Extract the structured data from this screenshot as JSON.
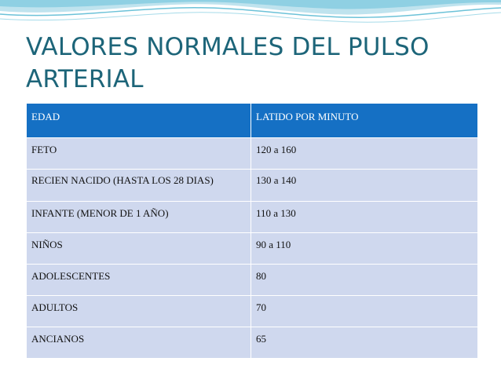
{
  "slide": {
    "title": "VALORES NORMALES DEL PULSO ARTERIAL"
  },
  "table": {
    "headers": [
      "EDAD",
      "LATIDO POR MINUTO"
    ],
    "rows": [
      [
        "FETO",
        "120 a 160"
      ],
      [
        "RECIEN NACIDO (HASTA LOS 28 DIAS)",
        "130 a 140"
      ],
      [
        "INFANTE (MENOR DE  1 AÑO)",
        "110 a 130"
      ],
      [
        "NIÑOS",
        "90 a 110"
      ],
      [
        "ADOLESCENTES",
        "80"
      ],
      [
        "ADULTOS",
        "70"
      ],
      [
        "ANCIANOS",
        "65"
      ]
    ]
  },
  "colors": {
    "title": "#1d6579",
    "header_bg": "#1570c4",
    "cell_bg": "#cfd8ee",
    "wave_accent": "#6cc2d8"
  }
}
